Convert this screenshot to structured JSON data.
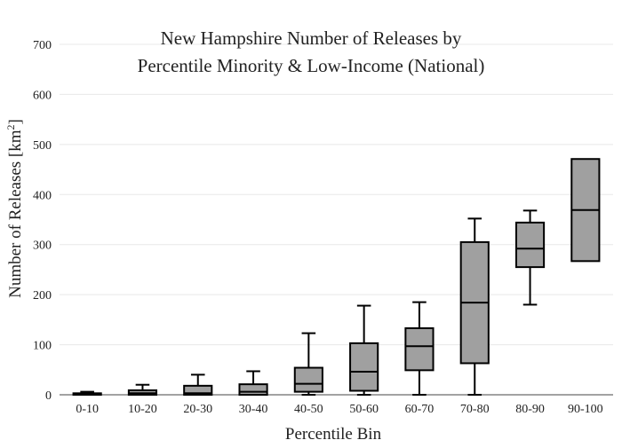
{
  "chart_data": {
    "type": "box",
    "title_lines": [
      "New Hampshire Number of Releases by",
      "Percentile Minority & Low-Income (National)"
    ],
    "xlabel": "Percentile Bin",
    "ylabel_main": "Number of Releases  [km",
    "ylabel_sup": "2",
    "ylabel_end": "]",
    "ylim": [
      0,
      700
    ],
    "yticks": [
      0,
      100,
      200,
      300,
      400,
      500,
      600,
      700
    ],
    "grid": true,
    "colors": {
      "box_fill": "#a0a0a0",
      "box_stroke": "#000000",
      "grid": "#e8e8e8",
      "axis": "#444444"
    },
    "categories": [
      "0-10",
      "10-20",
      "20-30",
      "30-40",
      "40-50",
      "50-60",
      "60-70",
      "70-80",
      "80-90",
      "90-100"
    ],
    "boxes": [
      {
        "min": 0,
        "q1": 0,
        "median": 2,
        "q3": 3,
        "max": 6
      },
      {
        "min": 0,
        "q1": 0,
        "median": 3,
        "q3": 9,
        "max": 20
      },
      {
        "min": 0,
        "q1": 0,
        "median": 3,
        "q3": 18,
        "max": 40
      },
      {
        "min": 0,
        "q1": 0,
        "median": 6,
        "q3": 21,
        "max": 47
      },
      {
        "min": 0,
        "q1": 6,
        "median": 22,
        "q3": 54,
        "max": 123
      },
      {
        "min": 0,
        "q1": 8,
        "median": 46,
        "q3": 103,
        "max": 178
      },
      {
        "min": 0,
        "q1": 49,
        "median": 97,
        "q3": 133,
        "max": 185
      },
      {
        "min": 0,
        "q1": 63,
        "median": 184,
        "q3": 305,
        "max": 352
      },
      {
        "min": 180,
        "q1": 255,
        "median": 292,
        "q3": 344,
        "max": 368
      },
      {
        "min": 267,
        "q1": 267,
        "median": 369,
        "q3": 471,
        "max": 471
      }
    ]
  }
}
